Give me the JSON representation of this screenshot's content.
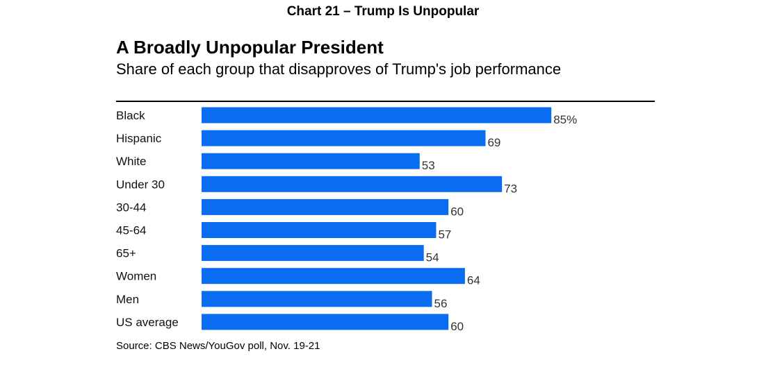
{
  "header": {
    "chart_label": "Chart 21 –  Trump Is Unpopular"
  },
  "chart_data": {
    "type": "bar",
    "orientation": "horizontal",
    "title": "A Broadly Unpopular President",
    "subtitle": "Share of each group that disapproves of Trump's job performance",
    "categories": [
      "Black",
      "Hispanic",
      "White",
      "Under 30",
      "30-44",
      "45-64",
      "65+",
      "Women",
      "Men",
      "US average"
    ],
    "values": [
      85,
      69,
      53,
      73,
      60,
      57,
      54,
      64,
      56,
      60
    ],
    "value_labels": [
      "85%",
      "69",
      "53",
      "73",
      "60",
      "57",
      "54",
      "64",
      "56",
      "60"
    ],
    "bar_color": "#0a6cf0",
    "xlabel": "",
    "ylabel": "",
    "xlim": [
      0,
      100
    ],
    "grid": false
  },
  "footer": {
    "source": "Source: CBS News/YouGov poll, Nov. 19-21"
  }
}
